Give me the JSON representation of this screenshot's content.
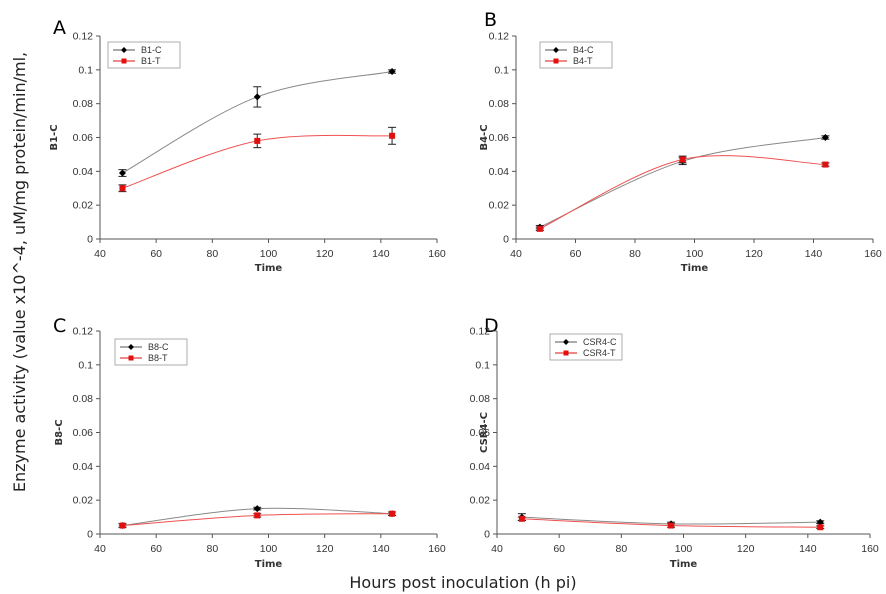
{
  "figure": {
    "y_label": "Enzyme activity (value x10^-4, uM/mg protein/min/ml,",
    "x_label": "Hours post inoculation (h pi)"
  },
  "colors": {
    "control": "#000000",
    "treated": "#e01010",
    "axis": "#555555"
  },
  "chart_data": [
    {
      "type": "line",
      "panel": "A",
      "xlabel": "Time",
      "ylabel": "B1-C",
      "xlim": [
        40,
        160
      ],
      "ylim": [
        0,
        0.12
      ],
      "xticks": [
        40,
        60,
        80,
        100,
        120,
        140,
        160
      ],
      "yticks": [
        0,
        0.02,
        0.04,
        0.06,
        0.08,
        0.1,
        0.12
      ],
      "legend": "top-left",
      "series": [
        {
          "name": "B1-C",
          "x": [
            48,
            96,
            144
          ],
          "y": [
            0.039,
            0.084,
            0.099
          ],
          "err": [
            0.002,
            0.006,
            0.001
          ]
        },
        {
          "name": "B1-T",
          "x": [
            48,
            96,
            144
          ],
          "y": [
            0.03,
            0.058,
            0.061
          ],
          "err": [
            0.002,
            0.004,
            0.005
          ]
        }
      ]
    },
    {
      "type": "line",
      "panel": "B",
      "xlabel": "Time",
      "ylabel": "B4-C",
      "xlim": [
        40,
        160
      ],
      "ylim": [
        0,
        0.12
      ],
      "xticks": [
        40,
        60,
        80,
        100,
        120,
        140,
        160
      ],
      "yticks": [
        0,
        0.02,
        0.04,
        0.06,
        0.08,
        0.1,
        0.12
      ],
      "legend": "top-left",
      "series": [
        {
          "name": "B4-C",
          "x": [
            48,
            96,
            144
          ],
          "y": [
            0.007,
            0.046,
            0.06
          ],
          "err": [
            0.001,
            0.002,
            0.001
          ]
        },
        {
          "name": "B4-T",
          "x": [
            48,
            96,
            144
          ],
          "y": [
            0.006,
            0.047,
            0.044
          ],
          "err": [
            0.001,
            0.002,
            0.001
          ]
        }
      ]
    },
    {
      "type": "line",
      "panel": "C",
      "xlabel": "Time",
      "ylabel": "B8-C",
      "xlim": [
        40,
        160
      ],
      "ylim": [
        0,
        0.12
      ],
      "xticks": [
        40,
        60,
        80,
        100,
        120,
        140,
        160
      ],
      "yticks": [
        0,
        0.02,
        0.04,
        0.06,
        0.08,
        0.1,
        0.12
      ],
      "legend": "top-left",
      "series": [
        {
          "name": "B8-C",
          "x": [
            48,
            96,
            144
          ],
          "y": [
            0.005,
            0.015,
            0.012
          ],
          "err": [
            0.001,
            0.0008,
            0.001
          ]
        },
        {
          "name": "B8-T",
          "x": [
            48,
            96,
            144
          ],
          "y": [
            0.005,
            0.011,
            0.012
          ],
          "err": [
            0.001,
            0.001,
            0.001
          ]
        }
      ]
    },
    {
      "type": "line",
      "panel": "D",
      "xlabel": "Time",
      "ylabel": "CSR4-C",
      "xlim": [
        40,
        160
      ],
      "ylim": [
        0,
        0.12
      ],
      "xticks": [
        40,
        60,
        80,
        100,
        120,
        140,
        160
      ],
      "yticks": [
        0,
        0.02,
        0.04,
        0.06,
        0.08,
        0.1,
        0.12
      ],
      "legend": "top-left",
      "series": [
        {
          "name": "CSR4-C",
          "x": [
            48,
            96,
            144
          ],
          "y": [
            0.01,
            0.006,
            0.007
          ],
          "err": [
            0.002,
            0.001,
            0.0008
          ]
        },
        {
          "name": "CSR4-T",
          "x": [
            48,
            96,
            144
          ],
          "y": [
            0.009,
            0.005,
            0.004
          ],
          "err": [
            0.001,
            0.001,
            0.0008
          ]
        }
      ]
    }
  ]
}
